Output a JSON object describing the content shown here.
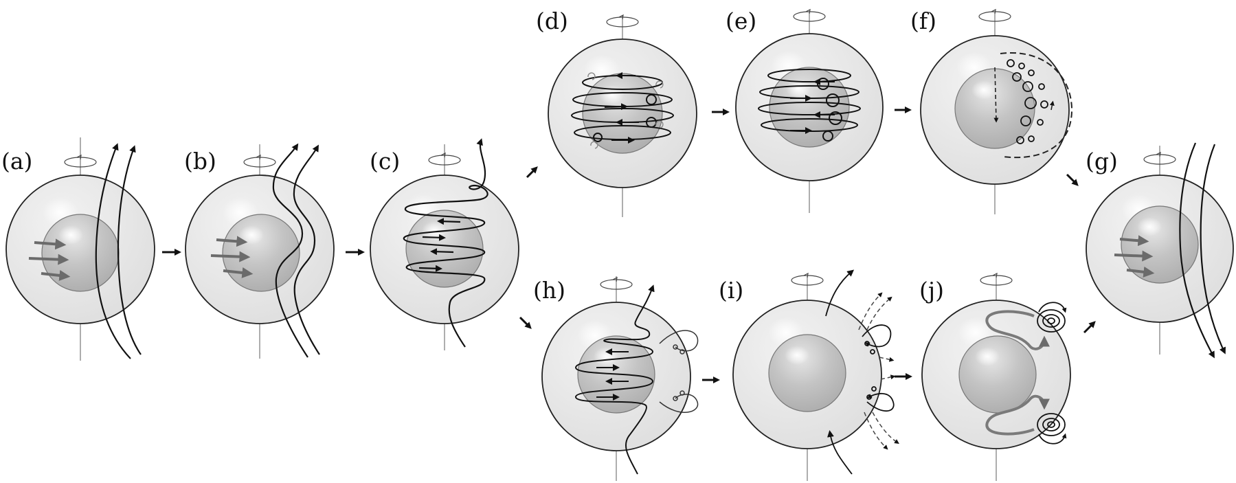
{
  "diagram": {
    "panels": [
      {
        "id": "a",
        "label": "(a)"
      },
      {
        "id": "b",
        "label": "(b)"
      },
      {
        "id": "c",
        "label": "(c)"
      },
      {
        "id": "d",
        "label": "(d)"
      },
      {
        "id": "e",
        "label": "(e)"
      },
      {
        "id": "f",
        "label": "(f)"
      },
      {
        "id": "g",
        "label": "(g)"
      },
      {
        "id": "h",
        "label": "(h)"
      },
      {
        "id": "i",
        "label": "(i)"
      },
      {
        "id": "j",
        "label": "(j)"
      }
    ],
    "colors": {
      "outer_sphere": "#e4e4e4",
      "inner_core": "#bdbdbd",
      "field_line": "#111111",
      "flow_arrow": "#707070"
    }
  }
}
